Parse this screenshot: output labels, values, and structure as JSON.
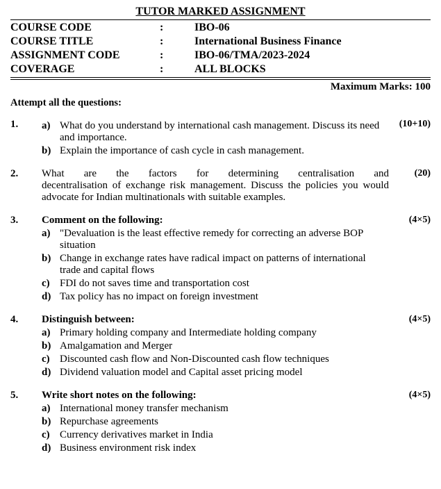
{
  "title": "TUTOR MARKED ASSIGNMENT",
  "info": {
    "rows": [
      {
        "label": "COURSE CODE",
        "value": "IBO-06"
      },
      {
        "label": "COURSE TITLE",
        "value": "International Business Finance"
      },
      {
        "label": "ASSIGNMENT CODE",
        "value": "IBO-06/TMA/2023-2024"
      },
      {
        "label": "COVERAGE",
        "value": "ALL BLOCKS"
      }
    ],
    "colon": ":"
  },
  "maxMarks": "Maximum Marks: 100",
  "attempt": "Attempt all the questions:",
  "q1": {
    "num": "1.",
    "marks": "(10+10)",
    "a": {
      "label": "a)",
      "text": "What do you understand by international cash management. Discuss its need and importance."
    },
    "b": {
      "label": "b)",
      "text": "Explain the importance of cash cycle in cash management."
    }
  },
  "q2": {
    "num": "2.",
    "marks": "(20)",
    "line1": "What are the factors for determining centralisation and",
    "line2": "decentralisation of exchange risk management. Discuss the policies you would advocate for Indian multinationals with suitable examples."
  },
  "q3": {
    "num": "3.",
    "marks": "(4×5)",
    "heading": "Comment on the following:",
    "a": {
      "label": "a)",
      "text": "\"Devaluation is the least effective remedy for correcting an adverse BOP situation"
    },
    "b": {
      "label": "b)",
      "text": "Change in exchange rates have radical impact on patterns of international trade and capital flows"
    },
    "c": {
      "label": "c)",
      "text": "FDI do not saves time and transportation cost"
    },
    "d": {
      "label": "d)",
      "text": "Tax policy has no impact on foreign investment"
    }
  },
  "q4": {
    "num": "4.",
    "marks": "(4×5)",
    "heading": "Distinguish between:",
    "a": {
      "label": "a)",
      "text": "Primary holding company and Intermediate holding company"
    },
    "b": {
      "label": "b)",
      "text": "Amalgamation and Merger"
    },
    "c": {
      "label": "c)",
      "text": "Discounted cash flow and Non-Discounted cash flow techniques"
    },
    "d": {
      "label": "d)",
      "text": "Dividend valuation model and Capital asset pricing model"
    }
  },
  "q5": {
    "num": "5.",
    "marks": "(4×5)",
    "heading": "Write short notes on the following:",
    "a": {
      "label": "a)",
      "text": "International money transfer mechanism"
    },
    "b": {
      "label": "b)",
      "text": "Repurchase agreements"
    },
    "c": {
      "label": "c)",
      "text": "Currency derivatives market in India"
    },
    "d": {
      "label": "d)",
      "text": "Business environment risk index"
    }
  }
}
